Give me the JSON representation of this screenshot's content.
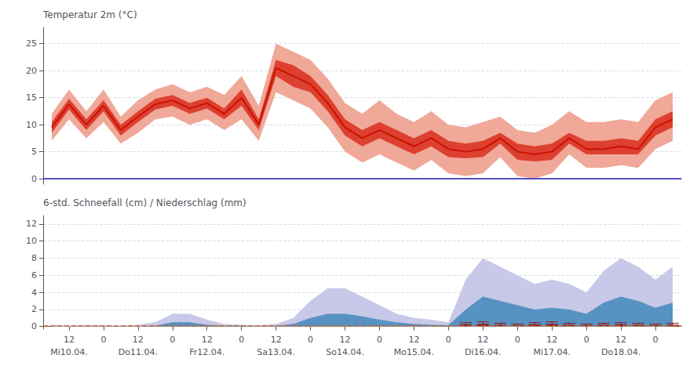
{
  "chart_data": [
    {
      "type": "line",
      "ylabel": "Temperatur 2m (°C)",
      "categories": [
        null,
        "12",
        null,
        "0",
        null,
        "12",
        null,
        "0",
        null,
        "12",
        null,
        "0",
        null,
        "12",
        null,
        "0",
        null,
        "12",
        null,
        "0",
        null,
        "12",
        null,
        "0",
        null,
        "12",
        null,
        "0",
        null,
        "12",
        null,
        "0",
        null,
        "12",
        null,
        "0",
        null
      ],
      "tick_labels": "y",
      "ylim": [
        -1,
        28
      ],
      "yticks": [
        0,
        5,
        10,
        15,
        20,
        25
      ],
      "grid": true,
      "series": [
        {
          "type": "band",
          "color": "#f0a898",
          "lower": [
            7.0,
            11.0,
            7.5,
            10.5,
            6.5,
            8.5,
            11.0,
            11.5,
            10.0,
            11.0,
            9.0,
            11.0,
            7.0,
            16.0,
            14.5,
            13.0,
            9.5,
            5.0,
            3.0,
            4.5,
            3.0,
            1.5,
            3.5,
            1.0,
            0.5,
            1.0,
            4.0,
            0.5,
            0.0,
            1.0,
            4.5,
            2.0,
            2.0,
            2.5,
            2.0,
            5.5,
            7.0
          ],
          "upper": [
            12.0,
            16.5,
            12.5,
            16.5,
            11.5,
            14.5,
            16.5,
            17.5,
            16.0,
            17.0,
            15.5,
            19.0,
            13.5,
            25.0,
            23.5,
            22.0,
            18.5,
            14.0,
            12.0,
            14.5,
            12.0,
            10.5,
            12.5,
            10.0,
            9.5,
            10.5,
            11.5,
            9.0,
            8.5,
            10.0,
            12.5,
            10.5,
            10.5,
            11.0,
            10.5,
            14.5,
            16.0
          ]
        },
        {
          "type": "band",
          "color": "#dd4030",
          "lower": [
            8.5,
            12.8,
            9.0,
            12.5,
            8.0,
            10.5,
            12.8,
            13.5,
            12.0,
            13.0,
            11.0,
            13.5,
            9.0,
            19.0,
            17.0,
            16.0,
            12.5,
            8.0,
            6.0,
            7.5,
            6.0,
            4.5,
            6.0,
            4.0,
            3.8,
            4.0,
            6.5,
            3.5,
            3.2,
            3.5,
            6.5,
            4.5,
            4.5,
            4.5,
            4.5,
            8.0,
            9.5
          ],
          "upper": [
            10.5,
            14.8,
            11.0,
            14.5,
            10.0,
            12.5,
            14.8,
            15.5,
            14.0,
            15.0,
            13.0,
            16.5,
            11.0,
            22.0,
            21.0,
            19.0,
            15.5,
            11.0,
            9.0,
            10.5,
            9.0,
            7.5,
            9.0,
            7.0,
            6.5,
            7.0,
            8.5,
            6.5,
            6.0,
            6.5,
            8.5,
            7.0,
            7.0,
            7.5,
            7.0,
            11.0,
            12.5
          ]
        },
        {
          "type": "line",
          "color": "#cc1100",
          "values": [
            9.5,
            13.8,
            10.0,
            13.5,
            9.0,
            11.5,
            13.8,
            14.5,
            13.0,
            14.0,
            12.0,
            15.0,
            10.0,
            20.5,
            19.0,
            17.5,
            14.0,
            9.5,
            7.5,
            9.0,
            7.5,
            6.0,
            7.5,
            5.5,
            5.0,
            5.5,
            7.5,
            5.0,
            4.5,
            5.0,
            7.5,
            5.5,
            5.5,
            6.0,
            5.5,
            9.5,
            11.0
          ]
        }
      ],
      "reference_lines": [
        {
          "y": 0,
          "color": "#3333cc",
          "line_style": "solid"
        }
      ]
    },
    {
      "type": "area",
      "ylabel": "6-std. Schneefall (cm) / Niederschlag (mm)",
      "categories": [
        null,
        "12",
        null,
        "0",
        null,
        "12",
        null,
        "0",
        null,
        "12",
        null,
        "0",
        null,
        "12",
        null,
        "0",
        null,
        "12",
        null,
        "0",
        null,
        "12",
        null,
        "0",
        null,
        "12",
        null,
        "0",
        null,
        "12",
        null,
        "0",
        null,
        "12",
        null,
        "0",
        null
      ],
      "day_labels": [
        null,
        "Mi10.04.",
        null,
        null,
        null,
        "Do11.04.",
        null,
        null,
        null,
        "Fr12.04.",
        null,
        null,
        null,
        "Sa13.04.",
        null,
        null,
        null,
        "So14.04.",
        null,
        null,
        null,
        "Mo15.04.",
        null,
        null,
        null,
        "Di16.04.",
        null,
        null,
        null,
        "Mi17.04.",
        null,
        null,
        null,
        "Do18.04.",
        null,
        null,
        null
      ],
      "ylim": [
        -0.3,
        13
      ],
      "yticks": [
        0,
        2,
        4,
        6,
        8,
        10,
        12
      ],
      "grid": true,
      "series": [
        {
          "type": "area",
          "color": "#c8c8e8",
          "values": [
            0.2,
            0.1,
            0.2,
            0.15,
            0.1,
            0.2,
            0.5,
            1.5,
            1.5,
            0.8,
            0.3,
            0.2,
            0.15,
            0.3,
            1.0,
            3.0,
            4.5,
            4.5,
            3.5,
            2.5,
            1.5,
            1.0,
            0.8,
            0.5,
            5.5,
            8.0,
            7.0,
            6.0,
            5.0,
            5.5,
            5.0,
            4.0,
            6.5,
            8.0,
            7.0,
            5.5,
            7.0
          ]
        },
        {
          "type": "area",
          "color": "#4488bb",
          "values": [
            0.05,
            0.05,
            0.05,
            0.05,
            0.05,
            0.05,
            0.1,
            0.5,
            0.5,
            0.2,
            0.1,
            0.1,
            0.05,
            0.1,
            0.3,
            1.0,
            1.5,
            1.5,
            1.2,
            0.8,
            0.5,
            0.3,
            0.2,
            0.15,
            2.0,
            3.5,
            3.0,
            2.5,
            2.0,
            2.2,
            2.0,
            1.5,
            2.8,
            3.5,
            3.0,
            2.2,
            2.8
          ]
        },
        {
          "type": "box",
          "color": "#8B1A1A",
          "low": [
            null,
            null,
            null,
            null,
            null,
            null,
            null,
            null,
            null,
            null,
            null,
            null,
            null,
            null,
            null,
            null,
            null,
            null,
            null,
            null,
            null,
            null,
            null,
            null,
            0.05,
            0.05,
            0.05,
            0.05,
            0.05,
            0.05,
            0.05,
            0.05,
            0.05,
            0.05,
            0.05,
            0.05,
            0.05
          ],
          "median": [
            null,
            null,
            null,
            null,
            null,
            null,
            null,
            null,
            null,
            null,
            null,
            null,
            null,
            null,
            null,
            null,
            null,
            null,
            null,
            null,
            null,
            null,
            null,
            null,
            0.25,
            0.3,
            0.2,
            0.15,
            0.25,
            0.3,
            0.2,
            0.15,
            0.2,
            0.25,
            0.2,
            0.15,
            0.2
          ],
          "high": [
            null,
            null,
            null,
            null,
            null,
            null,
            null,
            null,
            null,
            null,
            null,
            null,
            null,
            null,
            null,
            null,
            null,
            null,
            null,
            null,
            null,
            null,
            null,
            null,
            0.45,
            0.55,
            0.38,
            0.28,
            0.45,
            0.55,
            0.38,
            0.28,
            0.38,
            0.45,
            0.38,
            0.28,
            0.38
          ]
        }
      ],
      "reference_lines": [
        {
          "y": 0.08,
          "color": "#cc6622",
          "line_style": "dashed"
        }
      ]
    }
  ]
}
